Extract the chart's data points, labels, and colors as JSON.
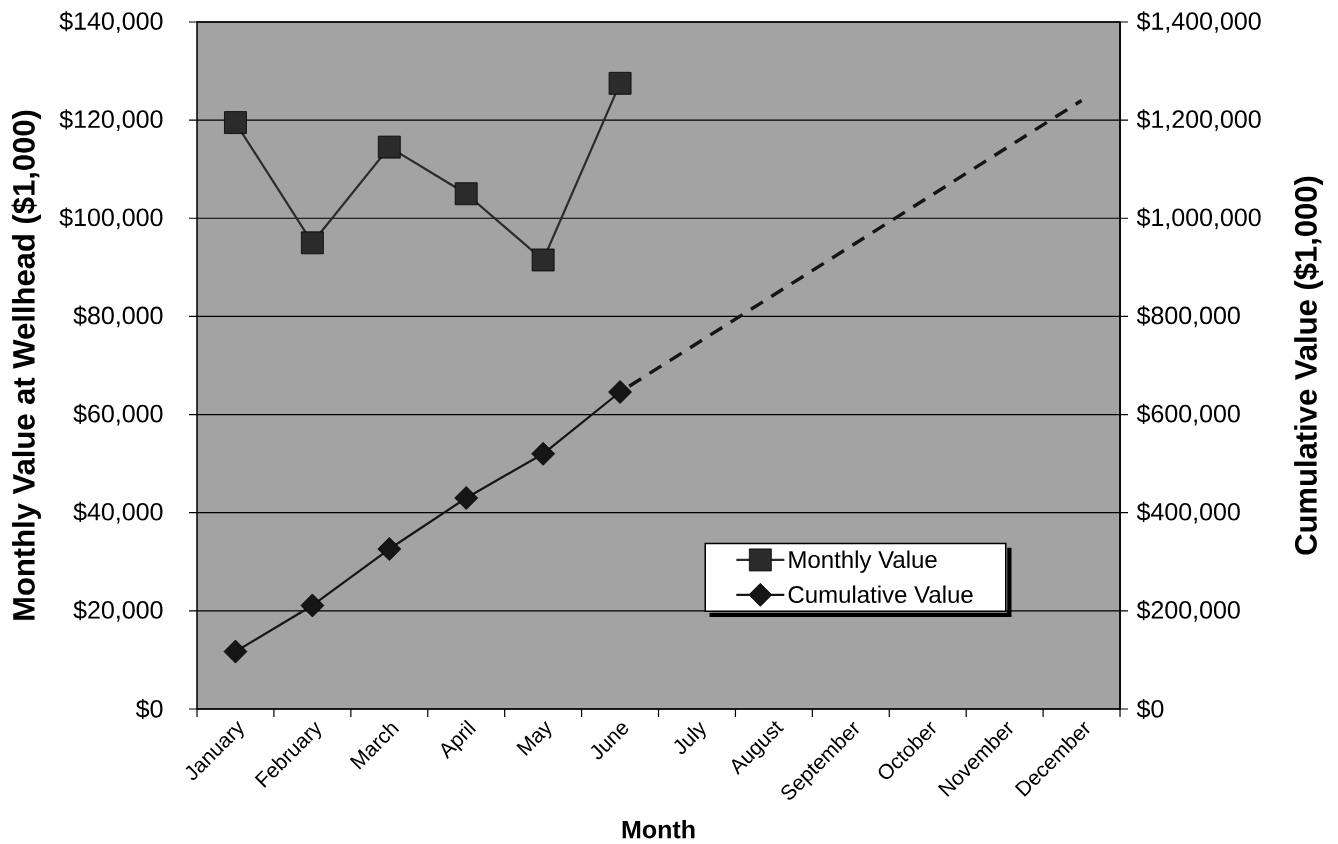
{
  "chart_data": {
    "type": "line",
    "xlabel": "Month",
    "ylabel": "Monthly Value at Wellhead ($1,000)",
    "y2label": "Cumulative Value ($1,000)",
    "categories": [
      "January",
      "February",
      "March",
      "April",
      "May",
      "June",
      "July",
      "August",
      "September",
      "October",
      "November",
      "December"
    ],
    "series": [
      {
        "name": "Monthly Value",
        "color": "#2b2b2b",
        "marker": "square",
        "values": [
          119500,
          95000,
          114500,
          105000,
          91500,
          127500,
          null,
          null,
          null,
          null,
          null,
          null
        ]
      },
      {
        "name": "Cumulative Value",
        "color": "#151515",
        "marker": "diamond",
        "axis": "y2",
        "values": [
          117000,
          211000,
          326000,
          430000,
          520000,
          646000,
          null,
          null,
          null,
          null,
          null,
          null
        ]
      },
      {
        "color": "#151515",
        "marker": "none",
        "line_style": "dashed",
        "axis": "y2",
        "x": [
          "June",
          "December"
        ],
        "values": [
          646000,
          1240000
        ]
      }
    ],
    "ylim": [
      0,
      140000
    ],
    "yticks": [
      {
        "value": 0,
        "label": "$0"
      },
      {
        "value": 20000,
        "label": "$20,000"
      },
      {
        "value": 40000,
        "label": "$40,000"
      },
      {
        "value": 60000,
        "label": "$60,000"
      },
      {
        "value": 80000,
        "label": "$80,000"
      },
      {
        "value": 100000,
        "label": "$100,000"
      },
      {
        "value": 120000,
        "label": "$120,000"
      },
      {
        "value": 140000,
        "label": "$140,000"
      }
    ],
    "y2lim": [
      0,
      1400000
    ],
    "y2ticks": [
      {
        "value": 0,
        "label": "$0"
      },
      {
        "value": 200000,
        "label": "$200,000"
      },
      {
        "value": 400000,
        "label": "$400,000"
      },
      {
        "value": 600000,
        "label": "$600,000"
      },
      {
        "value": 800000,
        "label": "$800,000"
      },
      {
        "value": 1000000,
        "label": "$1,000,000"
      },
      {
        "value": 1200000,
        "label": "$1,200,000"
      },
      {
        "value": 1400000,
        "label": "$1,400,000"
      }
    ],
    "grid": "y",
    "legend": "bottom right"
  }
}
